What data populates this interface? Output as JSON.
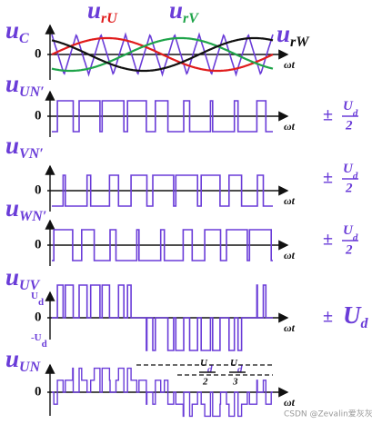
{
  "panels": [
    {
      "symbol": "u",
      "subscript": "C",
      "zero": "0",
      "axis": "ωt"
    },
    {
      "symbol": "u",
      "subscript": "UN′",
      "zero": "0",
      "axis": "ωt",
      "level": {
        "sign": "±",
        "numerator": "U",
        "numerator_sub": "d",
        "denominator": "2"
      }
    },
    {
      "symbol": "u",
      "subscript": "VN′",
      "zero": "0",
      "axis": "ωt",
      "level": {
        "sign": "±",
        "numerator": "U",
        "numerator_sub": "d",
        "denominator": "2"
      }
    },
    {
      "symbol": "u",
      "subscript": "WN′",
      "zero": "0",
      "axis": "ωt",
      "level": {
        "sign": "±",
        "numerator": "U",
        "numerator_sub": "d",
        "denominator": "2"
      }
    },
    {
      "symbol": "u",
      "subscript": "UV",
      "zero": "0",
      "axis": "ωt",
      "top": {
        "main": "U",
        "sub": "d"
      },
      "bottom": {
        "main": "-U",
        "sub": "d"
      },
      "level": {
        "sign": "±",
        "main": "U",
        "sub": "d"
      }
    },
    {
      "symbol": "u",
      "subscript": "UN",
      "zero": "0",
      "axis": "ωt",
      "annotations": [
        {
          "numerator": "U",
          "numerator_sub": "d",
          "denominator": "2"
        },
        {
          "numerator": "U",
          "numerator_sub": "d",
          "denominator": "3"
        }
      ]
    }
  ],
  "references": [
    {
      "symbol": "u",
      "subscript": "rU",
      "color": "#e01c1c"
    },
    {
      "symbol": "u",
      "subscript": "rV",
      "color": "#1fa44a"
    },
    {
      "symbol": "u",
      "subscript": "rW",
      "color": "#111111"
    }
  ],
  "watermark": "CSDN @Zevalin爱灰灰"
}
